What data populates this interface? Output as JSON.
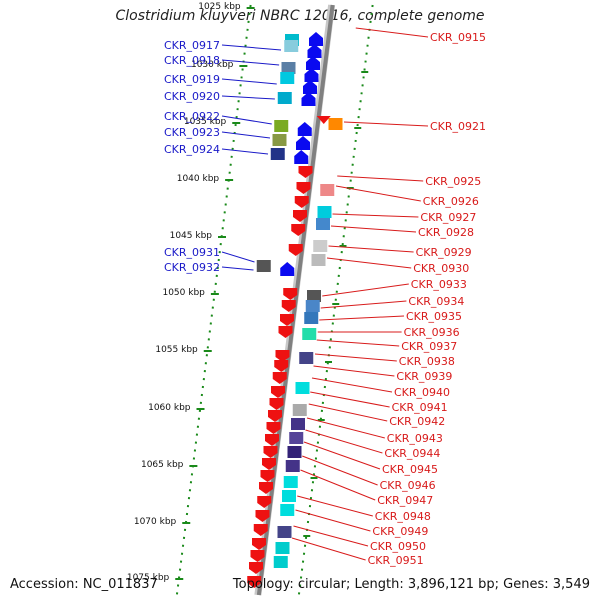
{
  "title": "Clostridium kluyveri NBRC 12016, complete genome",
  "accession": "Accession: NC_011837",
  "topology": "Topology: circular; Length: 3,896,121 bp; Genes: 3,549",
  "scale_labels": [
    "1025 kbp",
    "1030 kbp",
    "1035 kbp",
    "1040 kbp",
    "1045 kbp",
    "1050 kbp",
    "1055 kbp",
    "1060 kbp",
    "1065 kbp",
    "1070 kbp",
    "1075 kbp"
  ],
  "colors": {
    "reverse_label": "#1a1ac8",
    "forward_label": "#d81b1b",
    "reverse_arrow": "#0a0af0",
    "forward_arrow": "#ee1111",
    "backbone": "#808080",
    "tick": "#1a8a1a"
  },
  "reverse_genes": [
    "CKR_0917",
    "CKR_0918",
    "CKR_0919",
    "CKR_0920",
    "CKR_0922",
    "CKR_0923",
    "CKR_0924",
    "CKR_0931",
    "CKR_0932"
  ],
  "forward_genes": [
    "CKR_0915",
    "CKR_0921",
    "CKR_0925",
    "CKR_0926",
    "CKR_0927",
    "CKR_0928",
    "CKR_0929",
    "CKR_0930",
    "CKR_0933",
    "CKR_0934",
    "CKR_0935",
    "CKR_0936",
    "CKR_0937",
    "CKR_0938",
    "CKR_0939",
    "CKR_0940",
    "CKR_0941",
    "CKR_0942",
    "CKR_0943",
    "CKR_0944",
    "CKR_0945",
    "CKR_0946",
    "CKR_0947",
    "CKR_0948",
    "CKR_0949",
    "CKR_0950",
    "CKR_0951"
  ]
}
